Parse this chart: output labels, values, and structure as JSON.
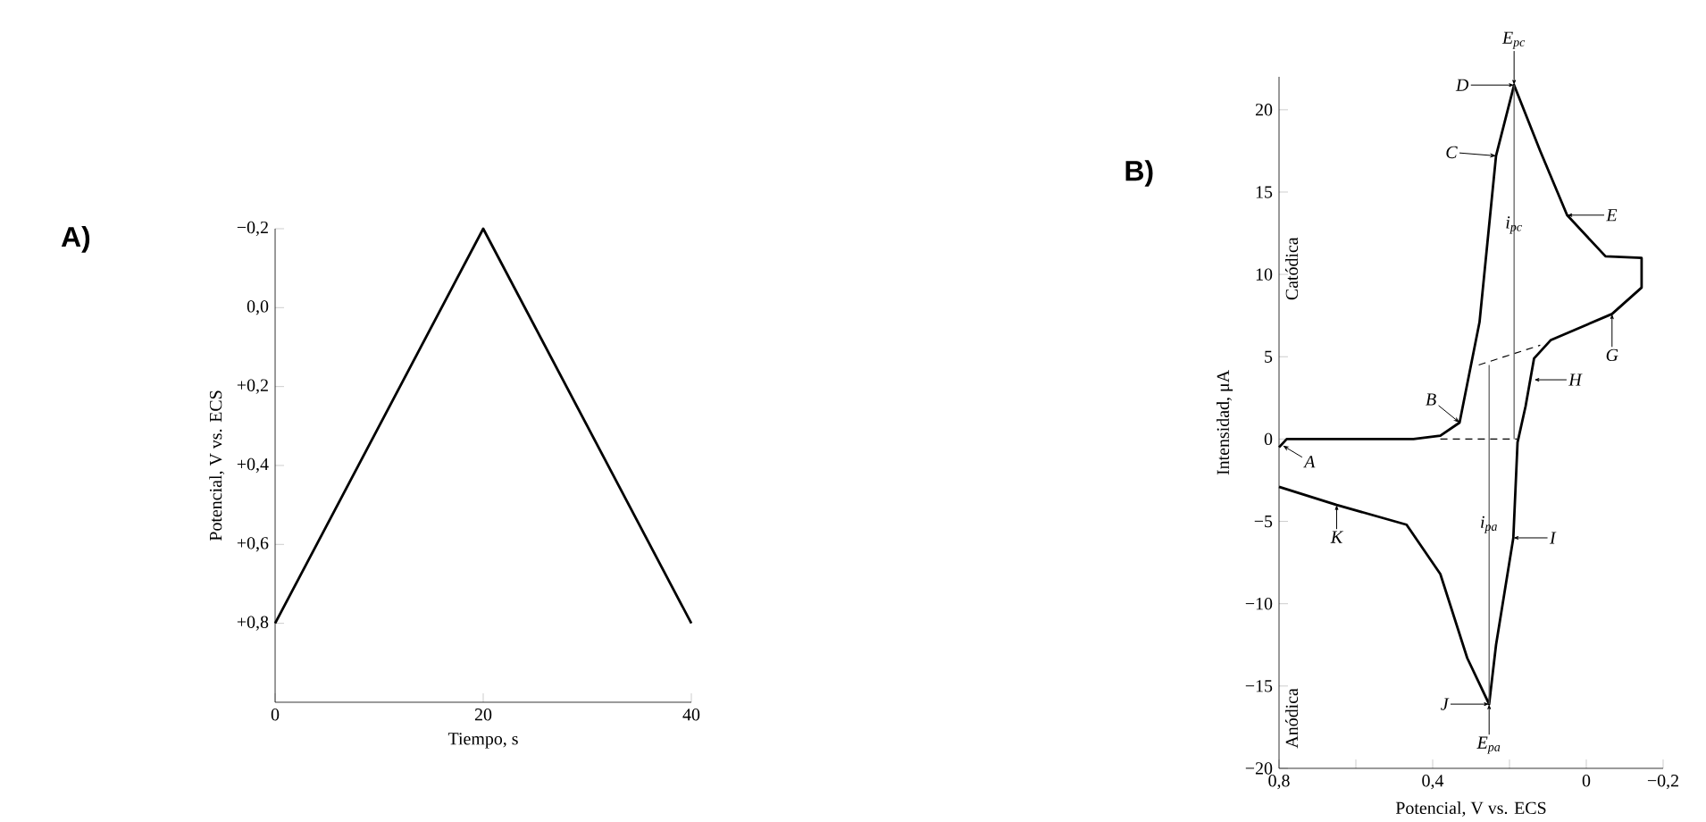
{
  "chart_data": [
    {
      "type": "line",
      "title": "A)",
      "xlabel": "Tiempo, s",
      "ylabel": "Potencial, V vs. ECS",
      "xlim": [
        0,
        40
      ],
      "ylim": [
        1.0,
        -0.2
      ],
      "xticks": [
        0,
        20,
        40
      ],
      "yticks": [
        {
          "value": -0.2,
          "label": "−0,2"
        },
        {
          "value": 0,
          "label": "0,0"
        },
        {
          "value": 0.2,
          "label": "+0,2"
        },
        {
          "value": 0.4,
          "label": "+0,4"
        },
        {
          "value": 0.6,
          "label": "+0,6"
        },
        {
          "value": 0.8,
          "label": "+0,8"
        }
      ],
      "x": [
        0,
        20,
        40
      ],
      "series": [
        {
          "color": "#000000",
          "values": [
            0.8,
            -0.2,
            0.8
          ]
        }
      ]
    },
    {
      "type": "line",
      "title": "B)",
      "xlabel": "Potencial, V vs. ECS",
      "ylabel": "Intensidad, μA",
      "xlim": [
        0.8,
        -0.2
      ],
      "ylim": [
        -20,
        22
      ],
      "xticks": [
        {
          "value": 0.8,
          "label": "0,8"
        },
        {
          "value": 0.6,
          "label": null
        },
        {
          "value": 0.4,
          "label": "0,4"
        },
        {
          "value": 0.2,
          "label": null
        },
        0,
        {
          "value": -0.2,
          "label": "−0,2"
        }
      ],
      "yticks": [
        {
          "value": -20,
          "label": "−20"
        },
        {
          "value": -15,
          "label": "−15"
        },
        {
          "value": -10,
          "label": "−10"
        },
        {
          "value": -5,
          "label": "−5"
        },
        0,
        5,
        10,
        15,
        20
      ],
      "series": [
        {
          "color": "#000000",
          "x": [
            0.8,
            0.78,
            0.6,
            0.45,
            0.38,
            0.33,
            0.278,
            0.235,
            0.188,
            0.12,
            0.05,
            -0.05,
            -0.144,
            -0.144,
            -0.067,
            0.093,
            0.136,
            0.158,
            0.179,
            0.19,
            0.235,
            0.253,
            0.31,
            0.38,
            0.468,
            0.65,
            0.8
          ],
          "values": [
            -0.5,
            0,
            0,
            0,
            0.2,
            1.0,
            7.1,
            17.2,
            21.5,
            17.5,
            13.6,
            11.1,
            11.0,
            9.2,
            7.6,
            6.0,
            4.9,
            2.0,
            -0.2,
            -6.0,
            -12.5,
            -16.1,
            -13.3,
            -8.2,
            -5.2,
            -4.0,
            -2.9
          ]
        },
        {
          "color": "#000000",
          "line_style": "dashed",
          "x": [
            0.38,
            0.18
          ],
          "values": [
            0,
            0
          ]
        },
        {
          "color": "#000000",
          "line_style": "dashed",
          "x": [
            0.28,
            0.12
          ],
          "values": [
            4.5,
            5.7
          ]
        },
        {
          "color": "#555555",
          "x": [
            0.188,
            0.188
          ],
          "values": [
            21.5,
            0
          ]
        },
        {
          "color": "#555555",
          "x": [
            0.253,
            0.253
          ],
          "values": [
            4.5,
            -16.1
          ]
        }
      ],
      "annotations": [
        "Catódica",
        "Anódica",
        {
          "text": "A",
          "x": 0.79,
          "y": -0.4
        },
        {
          "text": "B",
          "x": 0.33,
          "y": 1.0
        },
        {
          "text": "C",
          "x": 0.235,
          "y": 17.2
        },
        {
          "text": "D",
          "x": 0.188,
          "y": 21.5
        },
        {
          "text": "E$_{pc}$",
          "x": 0.188,
          "y": 21.5
        },
        {
          "text": "E",
          "x": 0.05,
          "y": 13.6
        },
        {
          "text": "G",
          "x": -0.067,
          "y": 7.6
        },
        {
          "text": "H",
          "x": 0.136,
          "y": 3.6
        },
        {
          "text": "I",
          "x": 0.19,
          "y": -6.0
        },
        {
          "text": "J",
          "x": 0.253,
          "y": -16.1
        },
        {
          "text": "E$_{pa}$",
          "x": 0.253,
          "y": -16.1
        },
        {
          "text": "K",
          "x": 0.65,
          "y": -4.0
        },
        {
          "text": "i$_{pc}$",
          "x": 0.188,
          "y": 13.0
        },
        {
          "text": "i$_{pa}$",
          "x": 0.253,
          "y": -5.2
        }
      ]
    }
  ]
}
